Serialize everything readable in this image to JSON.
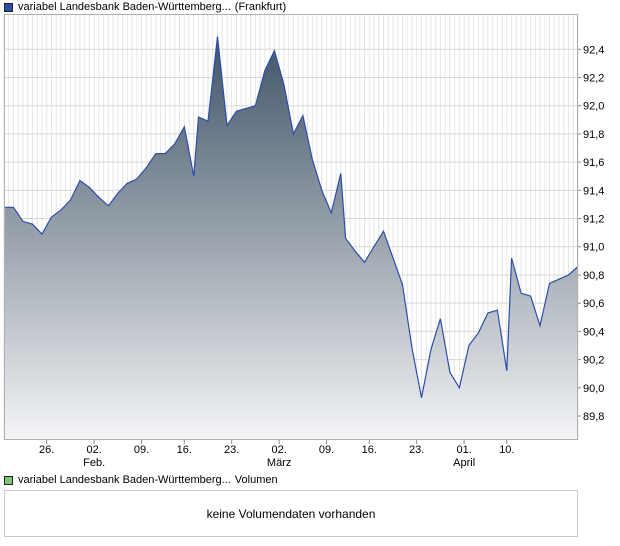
{
  "price_legend": {
    "label": "variabel Landesbank Baden-Württemberg...",
    "exchange": "(Frankfurt)",
    "color": "#2b4ea8"
  },
  "volume_legend": {
    "label": "variabel Landesbank Baden-Württemberg...",
    "suffix": "Volumen",
    "color": "#7cc47c"
  },
  "volume_panel": {
    "message": "keine Volumendaten vorhanden"
  },
  "chart_data": {
    "type": "area",
    "title": "",
    "xlabel": "",
    "ylabel": "",
    "ylim": [
      89.63,
      92.65
    ],
    "y_ticks": [
      "89,8",
      "90,0",
      "90,2",
      "90,4",
      "90,6",
      "90,8",
      "91,0",
      "91,2",
      "91,4",
      "91,6",
      "91,8",
      "92,0",
      "92,2",
      "92,4"
    ],
    "y_tick_values": [
      89.8,
      90.0,
      90.2,
      90.4,
      90.6,
      90.8,
      91.0,
      91.2,
      91.4,
      91.6,
      91.8,
      92.0,
      92.2,
      92.4
    ],
    "x_ticks": [
      "26.",
      "02.",
      "09.",
      "16.",
      "23.",
      "02.",
      "09.",
      "16.",
      "23.",
      "01.",
      "10."
    ],
    "x_tick_index": [
      9,
      19,
      29,
      38,
      48,
      58,
      68,
      77,
      87,
      97,
      106
    ],
    "month_labels": [
      {
        "label": "Feb.",
        "index": 19
      },
      {
        "label": "März",
        "index": 58
      },
      {
        "label": "April",
        "index": 97
      }
    ],
    "grid": true,
    "series": [
      {
        "values": [
          91.28,
          91.28,
          91.18,
          91.16,
          91.09,
          91.21,
          91.26,
          91.33,
          91.47,
          91.42,
          91.35,
          91.29,
          91.38,
          91.45,
          91.48,
          91.56,
          91.66,
          91.66,
          91.73,
          91.85,
          91.5,
          91.92,
          91.89,
          92.49,
          91.86,
          91.96,
          91.98,
          92.0,
          92.25,
          92.39,
          92.15,
          91.8,
          91.93,
          91.62,
          91.4,
          91.24,
          91.52,
          91.06,
          90.97,
          90.89,
          91.0,
          91.11,
          90.92,
          90.73,
          90.28,
          89.93,
          90.27,
          90.49,
          90.11,
          90.0,
          90.3,
          90.39,
          90.53,
          90.55,
          90.12,
          90.92,
          90.67,
          90.65,
          90.44,
          90.74,
          90.77,
          90.8,
          90.86
        ],
        "x_index": [
          0,
          2,
          4,
          6,
          8,
          10,
          12,
          14,
          16,
          18,
          20,
          22,
          24,
          26,
          28,
          30,
          32,
          34,
          36,
          38,
          40,
          41,
          43,
          45,
          47,
          49,
          51,
          53,
          55,
          57,
          59,
          61,
          63,
          65,
          67,
          69,
          71,
          72,
          74,
          76,
          78,
          80,
          82,
          84,
          86,
          88,
          90,
          92,
          94,
          96,
          98,
          100,
          102,
          104,
          106,
          107,
          109,
          111,
          113,
          115,
          117,
          119,
          121
        ]
      }
    ]
  }
}
